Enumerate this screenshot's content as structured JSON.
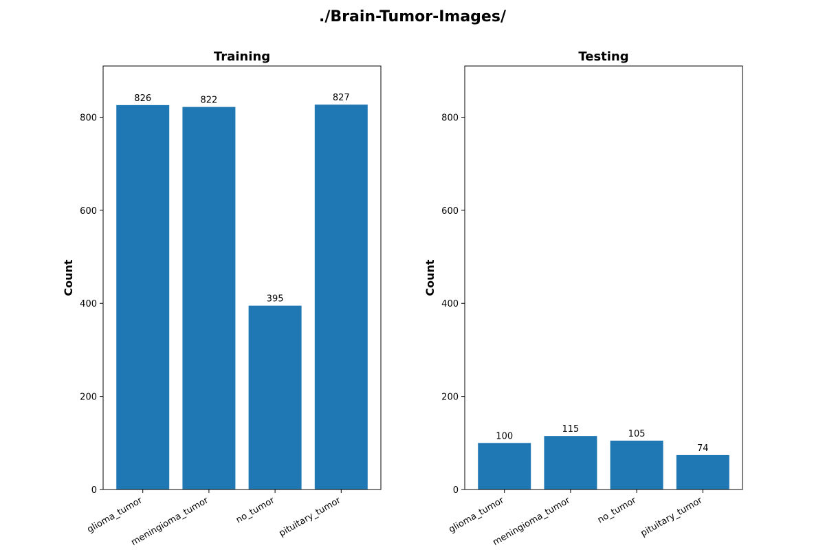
{
  "figure": {
    "suptitle": "./Brain-Tumor-Images/",
    "bar_color": "#1f77b4"
  },
  "chart_data": [
    {
      "type": "bar",
      "title": "Training",
      "xlabel": "",
      "ylabel": "Count",
      "categories": [
        "glioma_tumor",
        "meningioma_tumor",
        "no_tumor",
        "pituitary_tumor"
      ],
      "values": [
        826,
        822,
        395,
        827
      ],
      "data_labels": [
        "826",
        "822",
        "395",
        "827"
      ],
      "ylim": [
        0,
        910
      ],
      "yticks": [
        0,
        200,
        400,
        600,
        800
      ],
      "ytick_labels": [
        "0",
        "200",
        "400",
        "600",
        "800"
      ],
      "grid": false,
      "legend": false
    },
    {
      "type": "bar",
      "title": "Testing",
      "xlabel": "",
      "ylabel": "Count",
      "categories": [
        "glioma_tumor",
        "meningioma_tumor",
        "no_tumor",
        "pituitary_tumor"
      ],
      "values": [
        100,
        115,
        105,
        74
      ],
      "data_labels": [
        "100",
        "115",
        "105",
        "74"
      ],
      "ylim": [
        0,
        910
      ],
      "yticks": [
        0,
        200,
        400,
        600,
        800
      ],
      "ytick_labels": [
        "0",
        "200",
        "400",
        "600",
        "800"
      ],
      "grid": false,
      "legend": false
    }
  ]
}
